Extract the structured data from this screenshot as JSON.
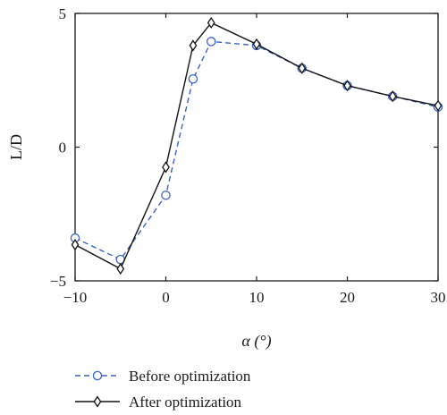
{
  "chart_data": {
    "type": "line",
    "xlabel": "α (°)",
    "ylabel": "L/D",
    "xlim": [
      -10,
      30
    ],
    "ylim": [
      -5,
      5
    ],
    "xticks": [
      -10,
      0,
      10,
      20,
      30
    ],
    "yticks": [
      -5,
      0,
      5
    ],
    "x_tick_labels": [
      "−10",
      "0",
      "10",
      "20",
      "30"
    ],
    "y_tick_labels": [
      "−5",
      "0",
      "5"
    ],
    "grid": false,
    "legend_position": "bottom-left, below plot",
    "series": [
      {
        "name": "Before optimization",
        "color": "#3a63c4",
        "line_style": "dashed",
        "marker": "circle",
        "x": [
          -10,
          -5,
          0,
          3,
          5,
          10,
          15,
          20,
          25,
          30
        ],
        "y": [
          -3.4,
          -4.2,
          -1.8,
          2.55,
          3.95,
          3.8,
          2.95,
          2.3,
          1.9,
          1.5
        ]
      },
      {
        "name": "After optimization",
        "color": "#111111",
        "line_style": "solid",
        "marker": "diamond",
        "x": [
          -10,
          -5,
          0,
          3,
          5,
          10,
          15,
          20,
          25,
          30
        ],
        "y": [
          -3.65,
          -4.55,
          -0.75,
          3.8,
          4.65,
          3.85,
          2.95,
          2.3,
          1.9,
          1.55
        ]
      }
    ]
  }
}
